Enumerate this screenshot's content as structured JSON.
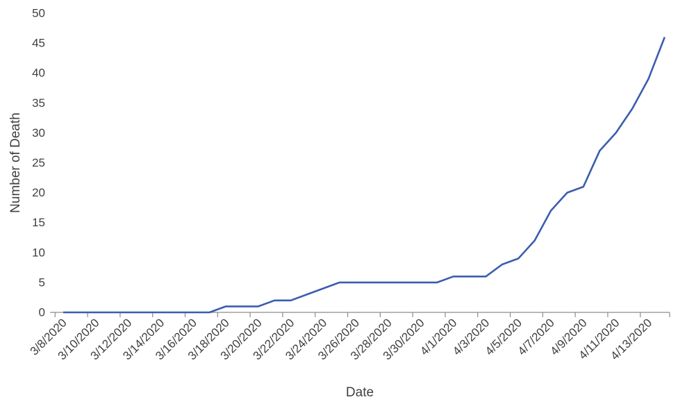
{
  "chart_data": {
    "type": "line",
    "xlabel": "Date",
    "ylabel": "Number of Death",
    "ylim": [
      0,
      50
    ],
    "y_ticks": [
      0,
      5,
      10,
      15,
      20,
      25,
      30,
      35,
      40,
      45,
      50
    ],
    "x_tick_labels": [
      "3/8/2020",
      "3/10/2020",
      "3/12/2020",
      "3/14/2020",
      "3/16/2020",
      "3/18/2020",
      "3/20/2020",
      "3/22/2020",
      "3/24/2020",
      "3/26/2020",
      "3/28/2020",
      "3/30/2020",
      "4/1/2020",
      "4/3/2020",
      "4/5/2020",
      "4/7/2020",
      "4/9/2020",
      "4/11/2020",
      "4/13/2020"
    ],
    "grid": false,
    "line_color": "#3A5DAE",
    "series": [
      {
        "x": [
          "3/8/2020",
          "3/9/2020",
          "3/10/2020",
          "3/11/2020",
          "3/12/2020",
          "3/13/2020",
          "3/14/2020",
          "3/15/2020",
          "3/16/2020",
          "3/17/2020",
          "3/18/2020",
          "3/19/2020",
          "3/20/2020",
          "3/21/2020",
          "3/22/2020",
          "3/23/2020",
          "3/24/2020",
          "3/25/2020",
          "3/26/2020",
          "3/27/2020",
          "3/28/2020",
          "3/29/2020",
          "3/30/2020",
          "3/31/2020",
          "4/1/2020",
          "4/2/2020",
          "4/3/2020",
          "4/4/2020",
          "4/5/2020",
          "4/6/2020",
          "4/7/2020",
          "4/8/2020",
          "4/9/2020",
          "4/10/2020",
          "4/11/2020",
          "4/12/2020",
          "4/13/2020",
          "4/14/2020"
        ],
        "values": [
          0,
          0,
          0,
          0,
          0,
          0,
          0,
          0,
          0,
          0,
          1,
          1,
          1,
          2,
          2,
          3,
          4,
          5,
          5,
          5,
          5,
          5,
          5,
          5,
          6,
          6,
          6,
          8,
          9,
          12,
          17,
          20,
          21,
          27,
          30,
          34,
          39,
          46
        ]
      }
    ]
  }
}
